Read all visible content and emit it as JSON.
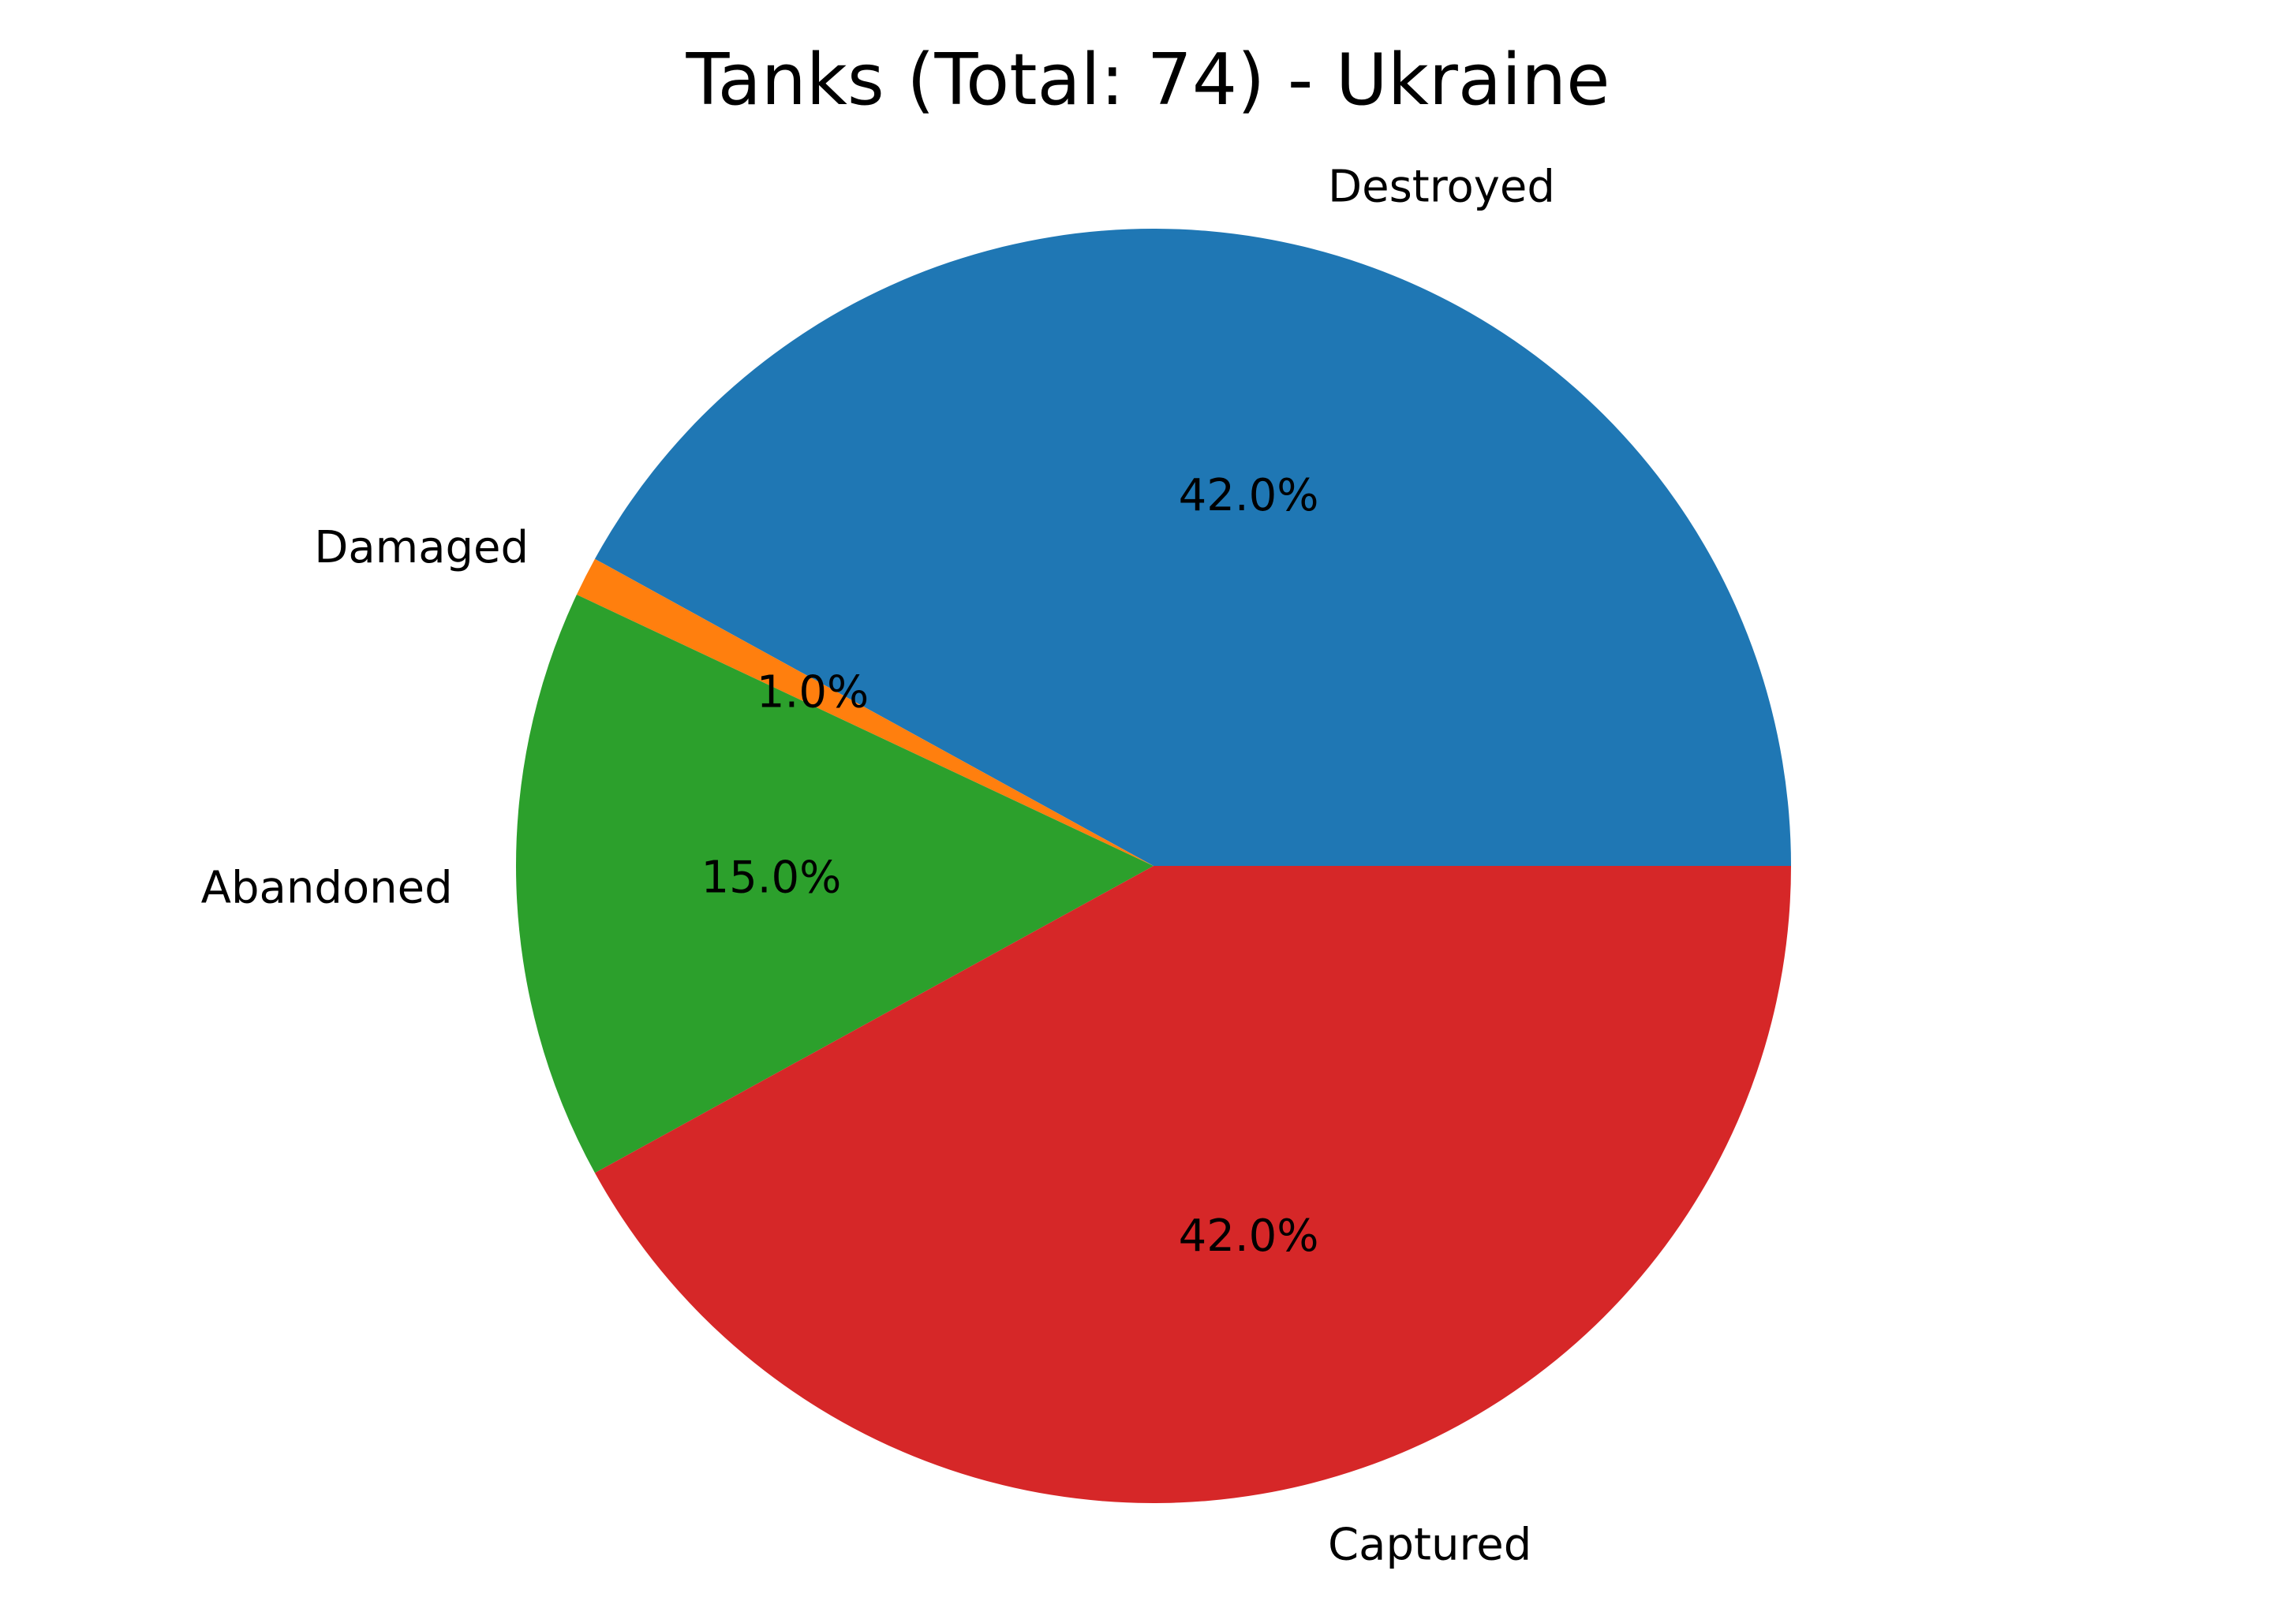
{
  "chart_data": {
    "type": "pie",
    "title": "Tanks (Total: 74) - Ukraine",
    "start_angle_deg": 0,
    "direction": "counterclockwise",
    "slices": [
      {
        "label": "Destroyed",
        "value": 42.0,
        "pct_label": "42.0%",
        "color": "#1f77b4"
      },
      {
        "label": "Damaged",
        "value": 1.0,
        "pct_label": "1.0%",
        "color": "#ff7f0e"
      },
      {
        "label": "Abandoned",
        "value": 15.0,
        "pct_label": "15.0%",
        "color": "#2ca02c"
      },
      {
        "label": "Captured",
        "value": 42.0,
        "pct_label": "42.0%",
        "color": "#d62728"
      }
    ]
  }
}
